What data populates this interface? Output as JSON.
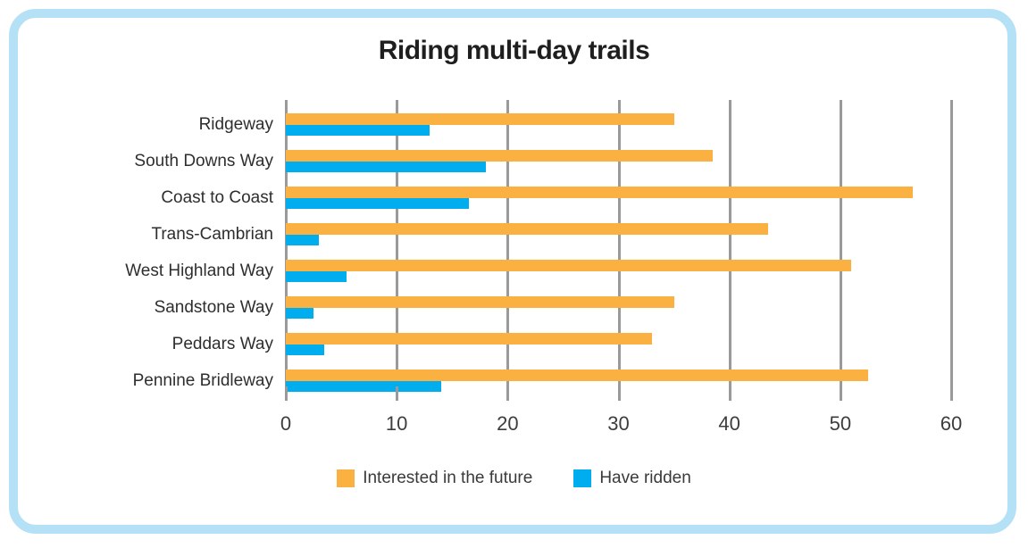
{
  "card": {
    "border_color": "#b5e1f7",
    "background": "#ffffff"
  },
  "chart_data": {
    "type": "bar",
    "orientation": "horizontal",
    "title": "Riding multi-day trails",
    "categories": [
      "Ridgeway",
      "South Downs Way",
      "Coast to Coast",
      "Trans-Cambrian",
      "West Highland Way",
      "Sandstone Way",
      "Peddars Way",
      "Pennine Bridleway"
    ],
    "series": [
      {
        "name": "Interested in the future",
        "color": "#fbb042",
        "values": [
          35,
          38.5,
          56.5,
          43.5,
          51,
          35,
          33,
          52.5
        ]
      },
      {
        "name": "Have ridden",
        "color": "#00aeef",
        "values": [
          13,
          18,
          16.5,
          3,
          5.5,
          2.5,
          3.5,
          14
        ]
      }
    ],
    "x_ticks": [
      0,
      10,
      20,
      30,
      40,
      50,
      60
    ],
    "xlim": [
      0,
      60
    ],
    "xlabel": "",
    "ylabel": "",
    "grid": true,
    "gridline_color": "#9a9a9a",
    "legend_position": "bottom"
  }
}
